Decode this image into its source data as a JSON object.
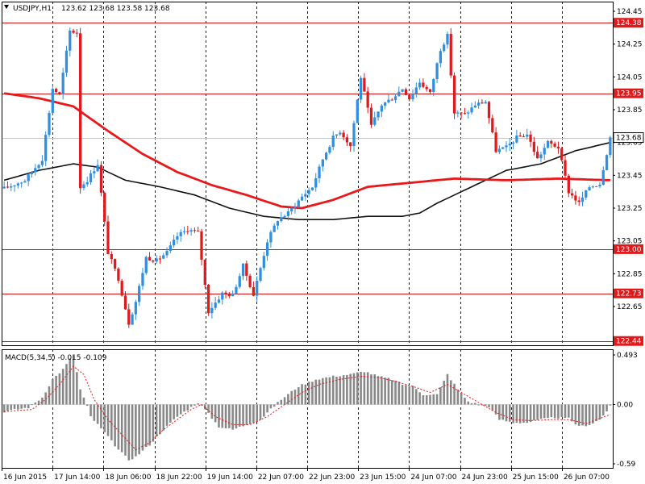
{
  "header": {
    "symbol_label": "USDJPY,H1",
    "ohlc_label": "123.62 123.68 123.58 123.68",
    "macd_label": "MACD(5,34,5) -0.015 -0.109"
  },
  "colors": {
    "bull": "#2f8fe0",
    "bear": "#e0191b",
    "ma_fast": "#e8191b",
    "ma_slow": "#111111",
    "level_line": "#d01010",
    "grid": "#222222",
    "macd_hist": "#888888",
    "macd_signal": "#e0191b",
    "current_tag_bg": "#ffffff",
    "level_tag_bg": "#e0191b"
  },
  "chart_data": [
    {
      "type": "candlestick",
      "title": "",
      "symbol": "USDJPY",
      "timeframe": "H1",
      "yticks": [
        "124.45",
        "124.25",
        "124.05",
        "123.85",
        "123.65",
        "123.45",
        "123.25",
        "123.05",
        "122.85",
        "122.65"
      ],
      "ylim": [
        122.38,
        124.49
      ],
      "xlabels": [
        "16 Jun 2015",
        "17 Jun 14:00",
        "18 Jun 06:00",
        "18 Jun 22:00",
        "19 Jun 14:00",
        "22 Jun 07:00",
        "22 Jun 23:00",
        "23 Jun 15:00",
        "24 Jun 07:00",
        "24 Jun 23:00",
        "25 Jun 15:00",
        "26 Jun 07:00"
      ],
      "levels": [
        {
          "value": 124.38,
          "label": "124.38"
        },
        {
          "value": 123.95,
          "label": "123.95"
        },
        {
          "value": 123.0,
          "label": "123.00"
        },
        {
          "value": 122.73,
          "label": "122.73"
        },
        {
          "value": 122.44,
          "label": "122.44"
        }
      ],
      "current_price": {
        "value": 123.68,
        "label": "123.68"
      },
      "anchors": [
        [
          0,
          123.37
        ],
        [
          6,
          123.42
        ],
        [
          11,
          123.55
        ],
        [
          14,
          123.98
        ],
        [
          16,
          123.94
        ],
        [
          19,
          124.33
        ],
        [
          21,
          124.32
        ],
        [
          22,
          123.38
        ],
        [
          24,
          123.42
        ],
        [
          27,
          123.52
        ],
        [
          30,
          122.98
        ],
        [
          33,
          122.82
        ],
        [
          36,
          122.55
        ],
        [
          38,
          122.68
        ],
        [
          41,
          122.95
        ],
        [
          44,
          122.93
        ],
        [
          47,
          122.98
        ],
        [
          50,
          123.08
        ],
        [
          53,
          123.12
        ],
        [
          56,
          123.1
        ],
        [
          59,
          122.62
        ],
        [
          63,
          122.73
        ],
        [
          66,
          122.72
        ],
        [
          69,
          122.9
        ],
        [
          72,
          122.72
        ],
        [
          76,
          123.05
        ],
        [
          79,
          123.18
        ],
        [
          82,
          123.22
        ],
        [
          86,
          123.32
        ],
        [
          89,
          123.38
        ],
        [
          92,
          123.55
        ],
        [
          95,
          123.68
        ],
        [
          97,
          123.72
        ],
        [
          100,
          123.63
        ],
        [
          103,
          124.05
        ],
        [
          106,
          123.75
        ],
        [
          109,
          123.88
        ],
        [
          112,
          123.92
        ],
        [
          115,
          123.98
        ],
        [
          117,
          123.92
        ],
        [
          120,
          124.02
        ],
        [
          123,
          123.95
        ],
        [
          126,
          124.22
        ],
        [
          128,
          124.3
        ],
        [
          130,
          123.83
        ],
        [
          133,
          123.82
        ],
        [
          136,
          123.88
        ],
        [
          139,
          123.9
        ],
        [
          142,
          123.6
        ],
        [
          145,
          123.62
        ],
        [
          148,
          123.68
        ],
        [
          151,
          123.7
        ],
        [
          154,
          123.55
        ],
        [
          157,
          123.65
        ],
        [
          160,
          123.62
        ],
        [
          163,
          123.35
        ],
        [
          166,
          123.28
        ],
        [
          169,
          123.38
        ],
        [
          172,
          123.4
        ],
        [
          175,
          123.68
        ]
      ],
      "ma_red": [
        [
          0,
          123.95
        ],
        [
          10,
          123.92
        ],
        [
          20,
          123.87
        ],
        [
          30,
          123.72
        ],
        [
          40,
          123.58
        ],
        [
          50,
          123.47
        ],
        [
          60,
          123.39
        ],
        [
          70,
          123.33
        ],
        [
          80,
          123.26
        ],
        [
          86,
          123.25
        ],
        [
          95,
          123.3
        ],
        [
          105,
          123.38
        ],
        [
          115,
          123.4
        ],
        [
          130,
          123.43
        ],
        [
          145,
          123.42
        ],
        [
          160,
          123.43
        ],
        [
          175,
          123.42
        ]
      ],
      "ma_black": [
        [
          0,
          123.42
        ],
        [
          10,
          123.48
        ],
        [
          20,
          123.52
        ],
        [
          27,
          123.5
        ],
        [
          35,
          123.42
        ],
        [
          45,
          123.38
        ],
        [
          55,
          123.33
        ],
        [
          65,
          123.25
        ],
        [
          75,
          123.2
        ],
        [
          85,
          123.18
        ],
        [
          95,
          123.18
        ],
        [
          105,
          123.2
        ],
        [
          115,
          123.2
        ],
        [
          120,
          123.22
        ],
        [
          125,
          123.28
        ],
        [
          135,
          123.38
        ],
        [
          145,
          123.48
        ],
        [
          155,
          123.52
        ],
        [
          165,
          123.6
        ],
        [
          175,
          123.65
        ]
      ]
    },
    {
      "type": "bar",
      "title": "",
      "indicator": "MACD(5,34,5)",
      "yticks": [
        "0.493",
        "0.00",
        "-0.59"
      ],
      "ylim": [
        -0.59,
        0.493
      ],
      "anchors": [
        [
          0,
          -0.07
        ],
        [
          7,
          -0.03
        ],
        [
          11,
          0.07
        ],
        [
          14,
          0.25
        ],
        [
          17,
          0.35
        ],
        [
          19,
          0.45
        ],
        [
          20,
          0.49
        ],
        [
          22,
          0.15
        ],
        [
          24,
          -0.02
        ],
        [
          25,
          -0.12
        ],
        [
          29,
          -0.28
        ],
        [
          33,
          -0.45
        ],
        [
          36,
          -0.55
        ],
        [
          38,
          -0.52
        ],
        [
          42,
          -0.4
        ],
        [
          46,
          -0.25
        ],
        [
          50,
          -0.12
        ],
        [
          53,
          -0.05
        ],
        [
          56,
          0.02
        ],
        [
          58,
          -0.05
        ],
        [
          62,
          -0.22
        ],
        [
          66,
          -0.25
        ],
        [
          70,
          -0.2
        ],
        [
          74,
          -0.15
        ],
        [
          76,
          -0.08
        ],
        [
          80,
          0.05
        ],
        [
          85,
          0.18
        ],
        [
          90,
          0.25
        ],
        [
          95,
          0.28
        ],
        [
          100,
          0.3
        ],
        [
          104,
          0.33
        ],
        [
          108,
          0.28
        ],
        [
          112,
          0.25
        ],
        [
          115,
          0.2
        ],
        [
          118,
          0.18
        ],
        [
          121,
          0.1
        ],
        [
          125,
          0.1
        ],
        [
          128,
          0.3
        ],
        [
          131,
          0.15
        ],
        [
          134,
          0.03
        ],
        [
          137,
          0.0
        ],
        [
          140,
          -0.02
        ],
        [
          143,
          -0.15
        ],
        [
          147,
          -0.18
        ],
        [
          151,
          -0.18
        ],
        [
          155,
          -0.15
        ],
        [
          159,
          -0.13
        ],
        [
          163,
          -0.14
        ],
        [
          166,
          -0.22
        ],
        [
          169,
          -0.2
        ],
        [
          172,
          -0.15
        ],
        [
          175,
          -0.02
        ]
      ],
      "signal_anchors": [
        [
          0,
          -0.07
        ],
        [
          8,
          -0.05
        ],
        [
          12,
          0.05
        ],
        [
          16,
          0.2
        ],
        [
          20,
          0.38
        ],
        [
          23,
          0.3
        ],
        [
          26,
          0.05
        ],
        [
          30,
          -0.15
        ],
        [
          34,
          -0.3
        ],
        [
          38,
          -0.45
        ],
        [
          42,
          -0.38
        ],
        [
          46,
          -0.25
        ],
        [
          50,
          -0.15
        ],
        [
          54,
          -0.05
        ],
        [
          57,
          0.0
        ],
        [
          61,
          -0.12
        ],
        [
          66,
          -0.2
        ],
        [
          71,
          -0.2
        ],
        [
          76,
          -0.12
        ],
        [
          81,
          0.0
        ],
        [
          86,
          0.12
        ],
        [
          91,
          0.2
        ],
        [
          97,
          0.25
        ],
        [
          103,
          0.28
        ],
        [
          108,
          0.27
        ],
        [
          113,
          0.23
        ],
        [
          118,
          0.18
        ],
        [
          123,
          0.12
        ],
        [
          128,
          0.2
        ],
        [
          132,
          0.12
        ],
        [
          137,
          0.02
        ],
        [
          142,
          -0.08
        ],
        [
          147,
          -0.15
        ],
        [
          152,
          -0.16
        ],
        [
          158,
          -0.15
        ],
        [
          163,
          -0.15
        ],
        [
          168,
          -0.19
        ],
        [
          175,
          -0.1
        ]
      ]
    }
  ]
}
